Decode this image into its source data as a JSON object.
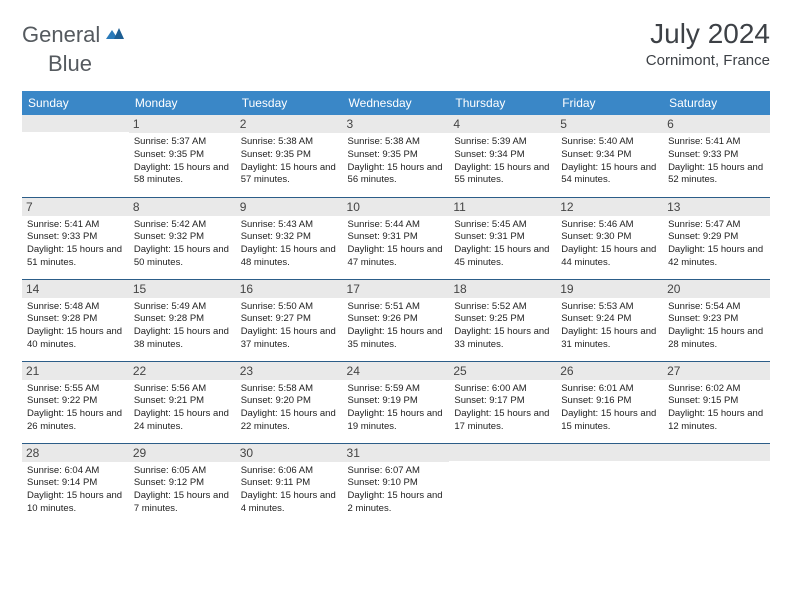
{
  "brand": {
    "word1": "General",
    "word2": "Blue"
  },
  "header": {
    "title": "July 2024",
    "location": "Cornimont, France"
  },
  "colors": {
    "header_bg": "#3a87c7",
    "header_text": "#ffffff",
    "row_border": "#2c5d88",
    "daynum_bg": "#e9e9e9",
    "logo_grey": "#555a5f",
    "logo_blue": "#2a7ab9",
    "page_bg": "#ffffff",
    "body_text": "#252525"
  },
  "weekdays": [
    "Sunday",
    "Monday",
    "Tuesday",
    "Wednesday",
    "Thursday",
    "Friday",
    "Saturday"
  ],
  "weeks": [
    [
      {
        "n": "",
        "sr": "",
        "ss": "",
        "dl": ""
      },
      {
        "n": "1",
        "sr": "5:37 AM",
        "ss": "9:35 PM",
        "dl": "15 hours and 58 minutes."
      },
      {
        "n": "2",
        "sr": "5:38 AM",
        "ss": "9:35 PM",
        "dl": "15 hours and 57 minutes."
      },
      {
        "n": "3",
        "sr": "5:38 AM",
        "ss": "9:35 PM",
        "dl": "15 hours and 56 minutes."
      },
      {
        "n": "4",
        "sr": "5:39 AM",
        "ss": "9:34 PM",
        "dl": "15 hours and 55 minutes."
      },
      {
        "n": "5",
        "sr": "5:40 AM",
        "ss": "9:34 PM",
        "dl": "15 hours and 54 minutes."
      },
      {
        "n": "6",
        "sr": "5:41 AM",
        "ss": "9:33 PM",
        "dl": "15 hours and 52 minutes."
      }
    ],
    [
      {
        "n": "7",
        "sr": "5:41 AM",
        "ss": "9:33 PM",
        "dl": "15 hours and 51 minutes."
      },
      {
        "n": "8",
        "sr": "5:42 AM",
        "ss": "9:32 PM",
        "dl": "15 hours and 50 minutes."
      },
      {
        "n": "9",
        "sr": "5:43 AM",
        "ss": "9:32 PM",
        "dl": "15 hours and 48 minutes."
      },
      {
        "n": "10",
        "sr": "5:44 AM",
        "ss": "9:31 PM",
        "dl": "15 hours and 47 minutes."
      },
      {
        "n": "11",
        "sr": "5:45 AM",
        "ss": "9:31 PM",
        "dl": "15 hours and 45 minutes."
      },
      {
        "n": "12",
        "sr": "5:46 AM",
        "ss": "9:30 PM",
        "dl": "15 hours and 44 minutes."
      },
      {
        "n": "13",
        "sr": "5:47 AM",
        "ss": "9:29 PM",
        "dl": "15 hours and 42 minutes."
      }
    ],
    [
      {
        "n": "14",
        "sr": "5:48 AM",
        "ss": "9:28 PM",
        "dl": "15 hours and 40 minutes."
      },
      {
        "n": "15",
        "sr": "5:49 AM",
        "ss": "9:28 PM",
        "dl": "15 hours and 38 minutes."
      },
      {
        "n": "16",
        "sr": "5:50 AM",
        "ss": "9:27 PM",
        "dl": "15 hours and 37 minutes."
      },
      {
        "n": "17",
        "sr": "5:51 AM",
        "ss": "9:26 PM",
        "dl": "15 hours and 35 minutes."
      },
      {
        "n": "18",
        "sr": "5:52 AM",
        "ss": "9:25 PM",
        "dl": "15 hours and 33 minutes."
      },
      {
        "n": "19",
        "sr": "5:53 AM",
        "ss": "9:24 PM",
        "dl": "15 hours and 31 minutes."
      },
      {
        "n": "20",
        "sr": "5:54 AM",
        "ss": "9:23 PM",
        "dl": "15 hours and 28 minutes."
      }
    ],
    [
      {
        "n": "21",
        "sr": "5:55 AM",
        "ss": "9:22 PM",
        "dl": "15 hours and 26 minutes."
      },
      {
        "n": "22",
        "sr": "5:56 AM",
        "ss": "9:21 PM",
        "dl": "15 hours and 24 minutes."
      },
      {
        "n": "23",
        "sr": "5:58 AM",
        "ss": "9:20 PM",
        "dl": "15 hours and 22 minutes."
      },
      {
        "n": "24",
        "sr": "5:59 AM",
        "ss": "9:19 PM",
        "dl": "15 hours and 19 minutes."
      },
      {
        "n": "25",
        "sr": "6:00 AM",
        "ss": "9:17 PM",
        "dl": "15 hours and 17 minutes."
      },
      {
        "n": "26",
        "sr": "6:01 AM",
        "ss": "9:16 PM",
        "dl": "15 hours and 15 minutes."
      },
      {
        "n": "27",
        "sr": "6:02 AM",
        "ss": "9:15 PM",
        "dl": "15 hours and 12 minutes."
      }
    ],
    [
      {
        "n": "28",
        "sr": "6:04 AM",
        "ss": "9:14 PM",
        "dl": "15 hours and 10 minutes."
      },
      {
        "n": "29",
        "sr": "6:05 AM",
        "ss": "9:12 PM",
        "dl": "15 hours and 7 minutes."
      },
      {
        "n": "30",
        "sr": "6:06 AM",
        "ss": "9:11 PM",
        "dl": "15 hours and 4 minutes."
      },
      {
        "n": "31",
        "sr": "6:07 AM",
        "ss": "9:10 PM",
        "dl": "15 hours and 2 minutes."
      },
      {
        "n": "",
        "sr": "",
        "ss": "",
        "dl": ""
      },
      {
        "n": "",
        "sr": "",
        "ss": "",
        "dl": ""
      },
      {
        "n": "",
        "sr": "",
        "ss": "",
        "dl": ""
      }
    ]
  ],
  "labels": {
    "sunrise": "Sunrise:",
    "sunset": "Sunset:",
    "daylight": "Daylight:"
  }
}
